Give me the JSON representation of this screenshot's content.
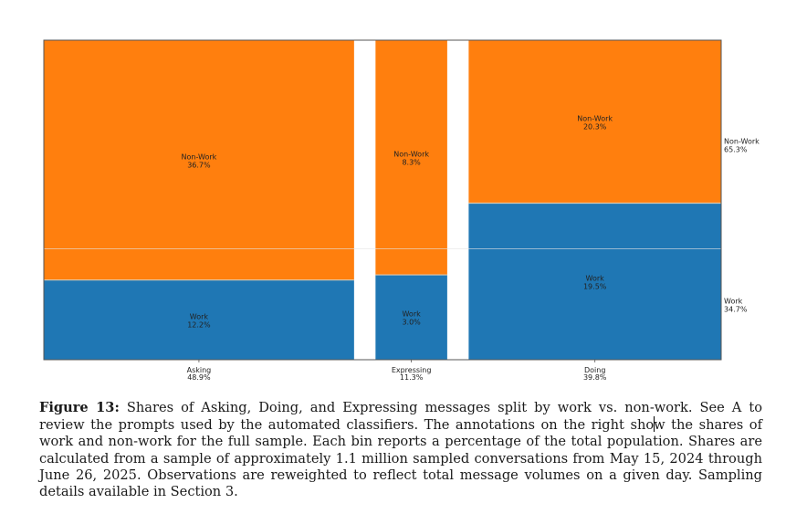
{
  "chart_data": {
    "type": "mosaic",
    "title": "",
    "xlabel": "",
    "ylabel": "",
    "ylim": [
      0,
      100
    ],
    "grid": false,
    "categories": [
      {
        "name": "Asking",
        "share": 48.9,
        "label_top": "Asking",
        "label_bottom": "48.9%"
      },
      {
        "name": "Expressing",
        "share": 11.3,
        "label_top": "Expressing",
        "label_bottom": "11.3%"
      },
      {
        "name": "Doing",
        "share": 39.8,
        "label_top": "Doing",
        "label_bottom": "39.8%"
      }
    ],
    "series": [
      {
        "name": "Work",
        "color": "#1f77b4",
        "values": [
          12.2,
          3.0,
          19.5
        ],
        "labels": [
          "12.2%",
          "3.0%",
          "19.5%"
        ]
      },
      {
        "name": "Non-Work",
        "color": "#ff7f0e",
        "values": [
          36.7,
          8.3,
          20.3
        ],
        "labels": [
          "36.7%",
          "8.3%",
          "20.3%"
        ]
      }
    ],
    "right_annotations": [
      {
        "name": "Non-Work",
        "value": 65.3,
        "label": "65.3%"
      },
      {
        "name": "Work",
        "value": 34.7,
        "label": "34.7%"
      }
    ],
    "reference_line": {
      "orientation": "horizontal",
      "value": 34.7
    }
  },
  "caption": {
    "label": "Figure 13:",
    "text_before_cursor": " Shares of Asking, Doing, and Expressing messages split by work vs. non-work. See A to review the prompts used by the automated classifiers. The annotations on the right sho",
    "text_after_cursor": "w the shares of work and non-work for the full sample. Each bin reports a percentage of the total population. Shares are calculated from a sample of approximately 1.1 million sampled conversations from May 15, 2024 through June 26, 2025. Observations are reweighted to reflect total message volumes on a given day. Sampling details available in Section 3."
  }
}
